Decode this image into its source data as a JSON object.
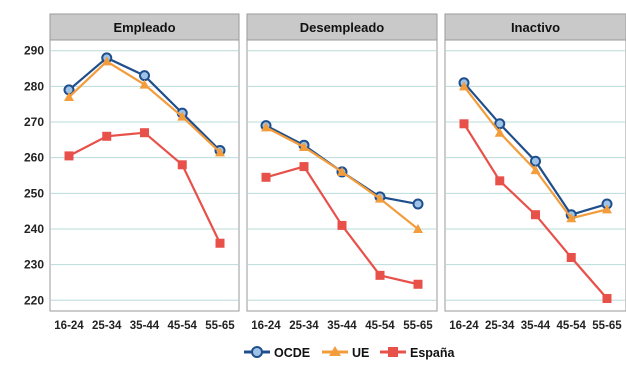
{
  "chart_data": {
    "type": "line",
    "panels": [
      "Empleado",
      "Desempleado",
      "Inactivo"
    ],
    "categories": [
      "16-24",
      "25-34",
      "35-44",
      "45-54",
      "55-65"
    ],
    "y_ticks": [
      220,
      230,
      240,
      250,
      260,
      270,
      280,
      290
    ],
    "ylim": [
      217,
      293
    ],
    "grid": true,
    "legend_position": "bottom-center",
    "series": [
      {
        "name": "OCDE",
        "color": "#1f4e8c",
        "marker": "circle",
        "values": [
          [
            279,
            288,
            283,
            272.5,
            262
          ],
          [
            269,
            263.5,
            256,
            249,
            247
          ],
          [
            281,
            269.5,
            259,
            244,
            247
          ]
        ]
      },
      {
        "name": "UE",
        "color": "#f39c3c",
        "marker": "triangle",
        "values": [
          [
            277,
            287,
            280.5,
            271.5,
            261.5
          ],
          [
            268.5,
            263,
            256,
            248.5,
            240
          ],
          [
            280,
            267,
            256.5,
            243,
            245.5
          ]
        ]
      },
      {
        "name": "España",
        "color": "#e8504a",
        "marker": "square",
        "values": [
          [
            260.5,
            266,
            267,
            258,
            236
          ],
          [
            254.5,
            257.5,
            241,
            227,
            224.5
          ],
          [
            269.5,
            253.5,
            244,
            232,
            220.5
          ]
        ]
      }
    ]
  }
}
